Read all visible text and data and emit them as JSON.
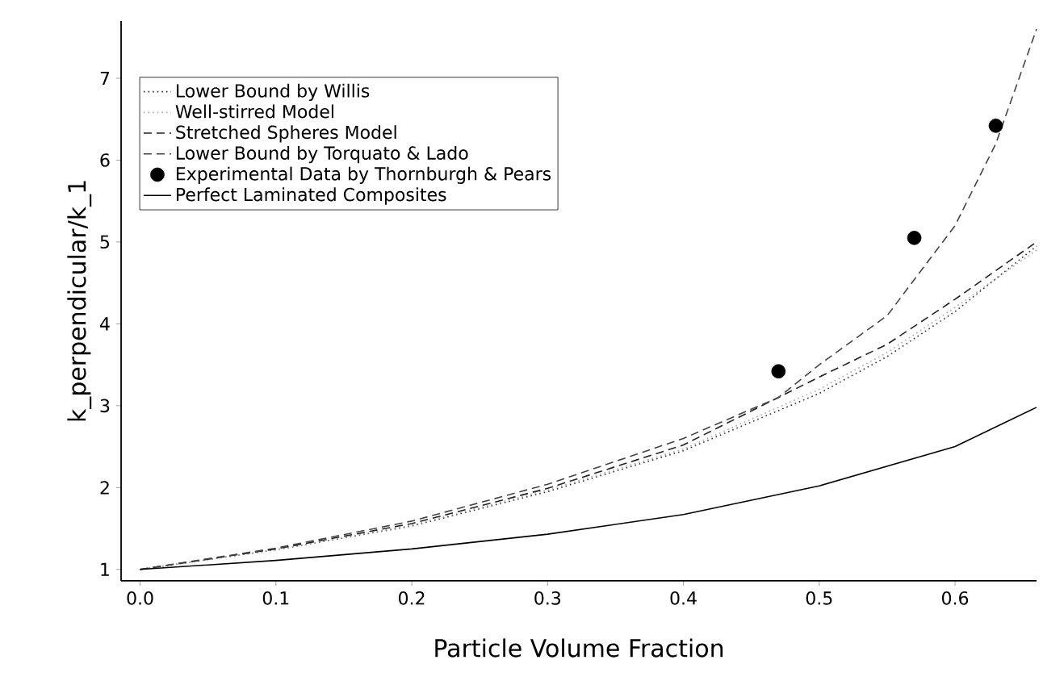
{
  "chart_data": {
    "type": "line",
    "xlabel": "Particle Volume Fraction",
    "ylabel": "k_perpendicular/k_1",
    "xlim": [
      -0.014,
      0.66
    ],
    "ylim": [
      0.86,
      7.7
    ],
    "xticks": [
      {
        "value": 0,
        "label": "0.0"
      },
      {
        "value": 0.1,
        "label": "0.1"
      },
      {
        "value": 0.2,
        "label": "0.2"
      },
      {
        "value": 0.3,
        "label": "0.3"
      },
      {
        "value": 0.4,
        "label": "0.4"
      },
      {
        "value": 0.5,
        "label": "0.5"
      },
      {
        "value": 0.6,
        "label": "0.6"
      }
    ],
    "yticks": [
      1,
      2,
      3,
      4,
      5,
      6,
      7
    ],
    "grid": false,
    "legend": "top left",
    "series": [
      {
        "name": "Lower Bound by Willis",
        "color": "#333333",
        "line_style": "dotted",
        "marker": "none",
        "x": [
          0,
          0.1,
          0.2,
          0.3,
          0.4,
          0.5,
          0.55,
          0.6,
          0.63,
          0.66
        ],
        "values": [
          1,
          1.24,
          1.53,
          1.95,
          2.45,
          3.15,
          3.6,
          4.15,
          4.55,
          4.95
        ]
      },
      {
        "name": "Well-stirred Model",
        "color": "#aaaaaa",
        "line_style": "dotted",
        "marker": "none",
        "x": [
          0,
          0.1,
          0.2,
          0.3,
          0.4,
          0.5,
          0.55,
          0.6,
          0.63,
          0.66
        ],
        "values": [
          1,
          1.24,
          1.54,
          1.97,
          2.47,
          3.2,
          3.65,
          4.2,
          4.55,
          4.9
        ]
      },
      {
        "name": "Stretched Spheres Model",
        "color": "#222222",
        "line_style": "dashed",
        "marker": "none",
        "x": [
          0,
          0.1,
          0.2,
          0.3,
          0.4,
          0.5,
          0.55,
          0.6,
          0.63,
          0.66
        ],
        "values": [
          1,
          1.25,
          1.56,
          1.99,
          2.52,
          3.35,
          3.75,
          4.3,
          4.65,
          5.0
        ]
      },
      {
        "name": "Lower Bound by Torquato & Lado",
        "color": "#444444",
        "line_style": "dashed",
        "marker": "none",
        "x": [
          0,
          0.1,
          0.2,
          0.3,
          0.4,
          0.47,
          0.5,
          0.55,
          0.6,
          0.63,
          0.66
        ],
        "values": [
          1,
          1.26,
          1.59,
          2.04,
          2.6,
          3.1,
          3.5,
          4.1,
          5.2,
          6.2,
          7.6
        ]
      },
      {
        "name": "Experimental Data by Thornburgh & Pears",
        "type": "scatter",
        "color": "#000000",
        "marker": "circle",
        "x": [
          0.47,
          0.57,
          0.63
        ],
        "values": [
          3.42,
          5.05,
          6.42
        ]
      },
      {
        "name": "Perfect Laminated Composites",
        "color": "#000000",
        "line_style": "solid",
        "marker": "none",
        "x": [
          0,
          0.1,
          0.2,
          0.3,
          0.4,
          0.5,
          0.6,
          0.66
        ],
        "values": [
          1,
          1.11,
          1.25,
          1.43,
          1.67,
          2.02,
          2.5,
          2.98
        ]
      }
    ]
  }
}
